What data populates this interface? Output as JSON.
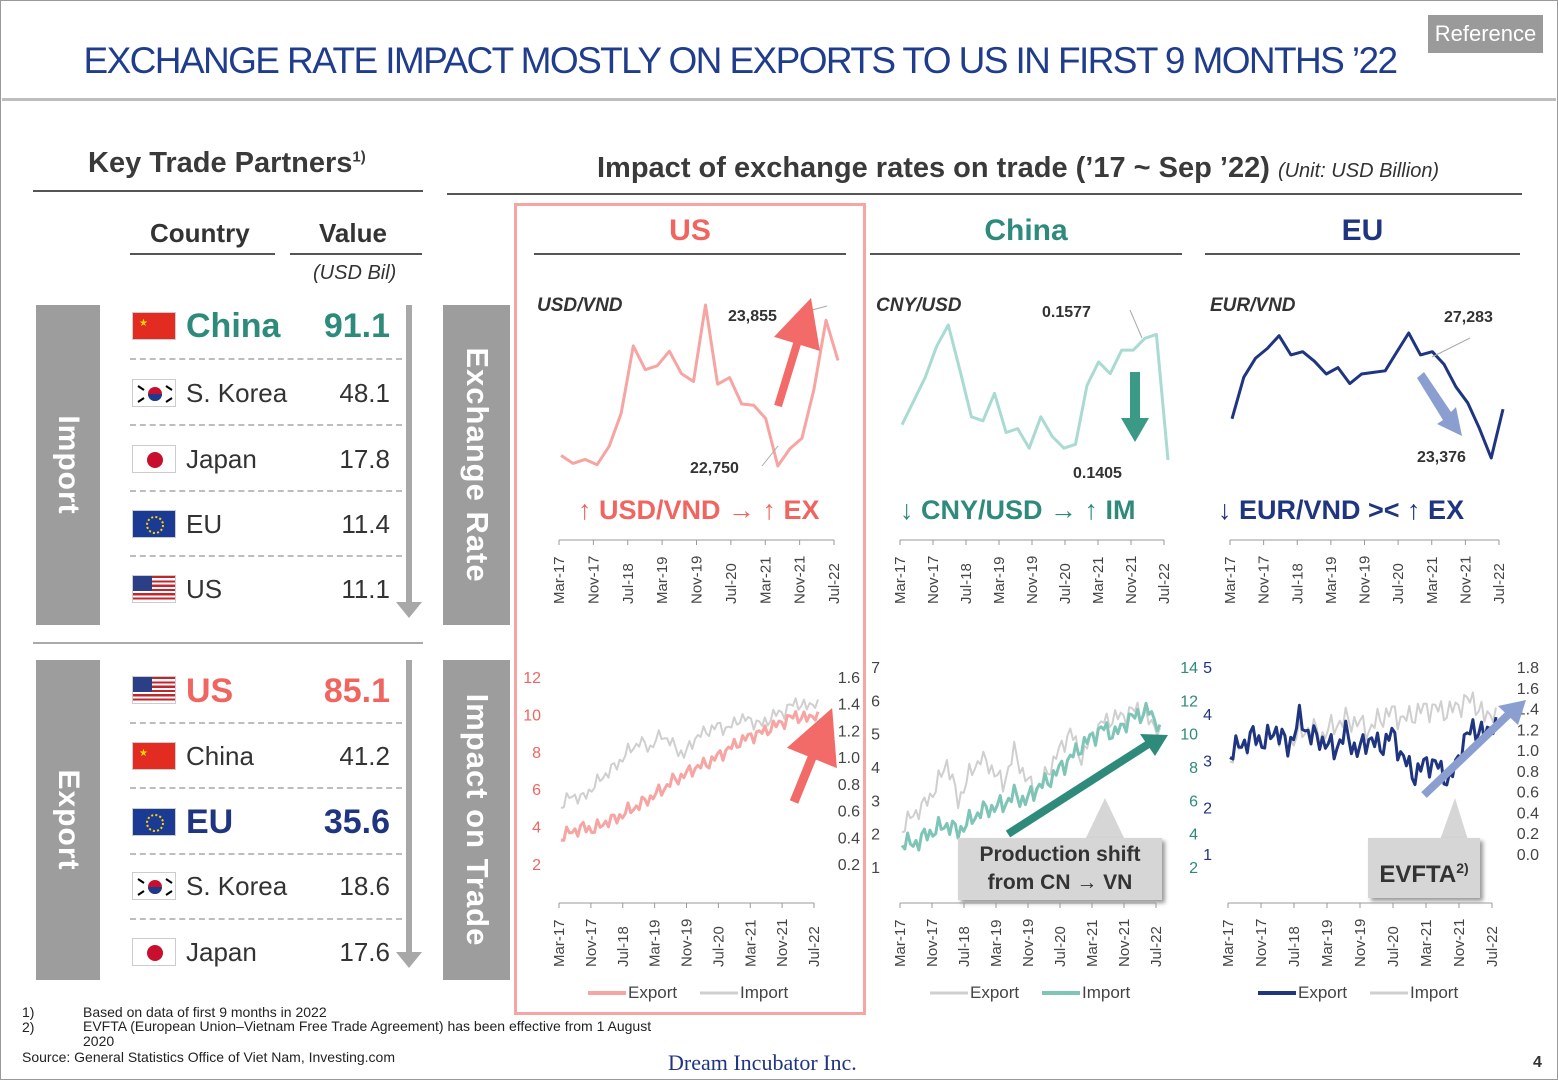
{
  "title": "EXCHANGE RATE IMPACT MOSTLY ON EXPORTS TO US IN FIRST 9 MONTHS ’22",
  "reference_label": "Reference",
  "left": {
    "heading": "Key Trade Partners",
    "heading_sup": "1)",
    "col_country": "Country",
    "col_value": "Value",
    "unit": "(USD Bil)",
    "import_label": "Import",
    "export_label": "Export",
    "import_rows": [
      {
        "country": "China",
        "value": "91.1",
        "flag": "china-flag-icon",
        "color": "#2e8a7a",
        "highlight": true
      },
      {
        "country": "S. Korea",
        "value": "48.1",
        "flag": "south-korea-flag-icon",
        "highlight": false
      },
      {
        "country": "Japan",
        "value": "17.8",
        "flag": "japan-flag-icon",
        "highlight": false
      },
      {
        "country": "EU",
        "value": "11.4",
        "flag": "eu-flag-icon",
        "highlight": false
      },
      {
        "country": "US",
        "value": "11.1",
        "flag": "us-flag-icon",
        "highlight": false
      }
    ],
    "export_rows": [
      {
        "country": "US",
        "value": "85.1",
        "flag": "us-flag-icon",
        "color": "#f06560",
        "highlight": true
      },
      {
        "country": "China",
        "value": "41.2",
        "flag": "china-flag-icon",
        "highlight": false
      },
      {
        "country": "EU",
        "value": "35.6",
        "flag": "eu-flag-icon",
        "color": "#1f3580",
        "highlight": true
      },
      {
        "country": "S. Korea",
        "value": "18.6",
        "flag": "south-korea-flag-icon",
        "highlight": false
      },
      {
        "country": "Japan",
        "value": "17.6",
        "flag": "japan-flag-icon",
        "highlight": false
      }
    ]
  },
  "right": {
    "heading": "Impact of exchange rates on trade (’17 ~ Sep ’22)",
    "unit": "(Unit: USD Billion)",
    "row_exchange": "Exchange Rate",
    "row_trade": "Impact on Trade",
    "columns": [
      {
        "name": "US",
        "color": "#f06560"
      },
      {
        "name": "China",
        "color": "#2e8a7a"
      },
      {
        "name": "EU",
        "color": "#1f3580"
      }
    ],
    "callouts": {
      "us": "↑ USD/VND → ↑ EX",
      "china": "↓ CNY/USD → ↑ IM",
      "eu": "↓ EUR/VND >< ↑ EX"
    },
    "annotations": {
      "china_shift": "Production shift from CN → VN",
      "evfta": "EVFTA",
      "evfta_sup": "2)"
    }
  },
  "colors": {
    "us_red": "#f06560",
    "us_light": "#f7a5a3",
    "teal": "#2e8a7a",
    "teal_light": "#a9dbd3",
    "navy": "#1f3580",
    "gray": "#d0d0d0"
  },
  "chart_data": [
    {
      "type": "line",
      "title": "USD/VND",
      "x_ticks": [
        "Mar-17",
        "Nov-17",
        "Jul-18",
        "Mar-19",
        "Nov-19",
        "Jul-20",
        "Mar-21",
        "Nov-21",
        "Jul-22"
      ],
      "series": [
        {
          "name": "USD/VND",
          "values": [
            22830,
            22770,
            22800,
            22760,
            22900,
            23150,
            23660,
            23480,
            23510,
            23620,
            23450,
            23390,
            23970,
            23370,
            23420,
            23220,
            23210,
            23110,
            22750,
            22880,
            22960,
            23330,
            23855,
            23550
          ]
        }
      ],
      "labels": {
        "max": "23,855",
        "min": "22,750"
      }
    },
    {
      "type": "line",
      "title": "CNY/USD",
      "x_ticks": [
        "Mar-17",
        "Nov-17",
        "Jul-18",
        "Mar-19",
        "Nov-19",
        "Jul-20",
        "Mar-21",
        "Nov-21",
        "Jul-22"
      ],
      "series": [
        {
          "name": "CNY/USD",
          "values": [
            0.145,
            0.148,
            0.151,
            0.155,
            0.1577,
            0.152,
            0.146,
            0.1455,
            0.149,
            0.144,
            0.1445,
            0.142,
            0.146,
            0.1435,
            0.142,
            0.1425,
            0.15,
            0.153,
            0.1515,
            0.1545,
            0.1545,
            0.156,
            0.1565,
            0.1405
          ]
        }
      ],
      "labels": {
        "max": "0.1577",
        "min": "0.1405"
      }
    },
    {
      "type": "line",
      "title": "EUR/VND",
      "x_ticks": [
        "Mar-17",
        "Nov-17",
        "Jul-18",
        "Mar-19",
        "Nov-19",
        "Jul-20",
        "Mar-21",
        "Nov-21",
        "Jul-22"
      ],
      "series": [
        {
          "name": "EUR/VND",
          "values": [
            24600,
            25900,
            26500,
            26800,
            27200,
            26600,
            26700,
            26400,
            26000,
            26200,
            25700,
            26000,
            26050,
            26100,
            26700,
            27283,
            26600,
            26700,
            26300,
            25600,
            25100,
            24300,
            23376,
            24900
          ]
        }
      ],
      "labels": {
        "max": "27,283",
        "min": "23,376"
      }
    },
    {
      "type": "line",
      "title": "US trade",
      "x_ticks": [
        "Mar-17",
        "Nov-17",
        "Jul-18",
        "Mar-19",
        "Nov-19",
        "Jul-20",
        "Mar-21",
        "Nov-21",
        "Jul-22"
      ],
      "y_left": [
        2,
        4,
        6,
        8,
        10,
        12
      ],
      "y_right": [
        0.2,
        0.4,
        0.6,
        0.8,
        1.0,
        1.2,
        1.4,
        1.6
      ],
      "series": [
        {
          "name": "Export",
          "axis": "left",
          "values": [
            3.5,
            3.8,
            4.0,
            3.9,
            4.3,
            4.5,
            4.9,
            5.2,
            5.6,
            6.0,
            6.5,
            6.8,
            7.2,
            7.4,
            7.8,
            8.2,
            8.6,
            8.9,
            9.1,
            9.4,
            9.7,
            10.0,
            9.8,
            10.2
          ]
        },
        {
          "name": "Import",
          "axis": "right",
          "values": [
            0.65,
            0.72,
            0.7,
            0.8,
            0.88,
            0.95,
            1.05,
            1.12,
            1.08,
            1.18,
            1.1,
            1.02,
            1.15,
            1.2,
            1.24,
            1.22,
            1.3,
            1.28,
            1.25,
            1.32,
            1.35,
            1.42,
            1.38,
            1.44
          ]
        }
      ]
    },
    {
      "type": "line",
      "title": "China trade",
      "x_ticks": [
        "Mar-17",
        "Nov-17",
        "Jul-18",
        "Mar-19",
        "Nov-19",
        "Jul-20",
        "Mar-21",
        "Nov-21",
        "Jul-22"
      ],
      "y_left": [
        1,
        2,
        3,
        4,
        5,
        6,
        7
      ],
      "y_right": [
        2,
        4,
        6,
        8,
        10,
        12,
        14
      ],
      "series": [
        {
          "name": "Export",
          "axis": "left",
          "values": [
            2.2,
            2.6,
            2.9,
            3.4,
            4.2,
            3.0,
            3.8,
            4.3,
            4.0,
            3.5,
            4.5,
            3.7,
            3.3,
            3.9,
            4.5,
            5.1,
            4.3,
            5.0,
            5.4,
            5.5,
            5.6,
            5.8,
            5.4,
            5.2
          ]
        },
        {
          "name": "Import",
          "axis": "right",
          "values": [
            3.6,
            3.4,
            3.9,
            4.3,
            4.6,
            4.2,
            4.8,
            5.4,
            5.6,
            5.8,
            6.4,
            6.0,
            6.8,
            7.2,
            7.9,
            8.6,
            9.3,
            9.9,
            10.4,
            10.0,
            10.8,
            11.2,
            11.4,
            10.6
          ]
        }
      ]
    },
    {
      "type": "line",
      "title": "EU trade",
      "x_ticks": [
        "Mar-17",
        "Nov-17",
        "Jul-18",
        "Mar-19",
        "Nov-19",
        "Jul-20",
        "Mar-21",
        "Nov-21",
        "Jul-22"
      ],
      "y_left": [
        1,
        2,
        3,
        4,
        5
      ],
      "y_right": [
        0.0,
        0.2,
        0.4,
        0.6,
        0.8,
        1.0,
        1.2,
        1.4,
        1.6,
        1.8
      ],
      "series": [
        {
          "name": "Export",
          "axis": "left",
          "values": [
            3.2,
            3.35,
            3.55,
            3.4,
            3.7,
            3.3,
            3.9,
            3.55,
            3.45,
            3.25,
            3.6,
            3.2,
            3.5,
            3.3,
            3.6,
            3.05,
            2.7,
            3.0,
            2.9,
            2.55,
            3.3,
            3.75,
            3.55,
            3.95
          ]
        },
        {
          "name": "Import",
          "axis": "right",
          "values": [
            0.95,
            1.05,
            1.12,
            1.1,
            1.18,
            1.05,
            1.18,
            1.22,
            1.15,
            1.25,
            1.3,
            1.28,
            1.2,
            1.32,
            1.38,
            1.3,
            1.36,
            1.42,
            1.4,
            1.38,
            1.46,
            1.5,
            1.32,
            1.42
          ]
        }
      ]
    }
  ],
  "legends": {
    "us": [
      "Export",
      "Import"
    ],
    "china": [
      "Export",
      "Import"
    ],
    "eu": [
      "Export",
      "Import"
    ]
  },
  "footnotes": [
    {
      "num": "1)",
      "text": "Based on data of first 9 months in 2022"
    },
    {
      "num": "2)",
      "text": "EVFTA (European Union–Vietnam Free Trade Agreement) has been effective from 1 August 2020"
    }
  ],
  "source": "Source:  General Statistics Office of Viet Nam, Investing.com",
  "company": "Dream Incubator Inc.",
  "page_number": "4"
}
